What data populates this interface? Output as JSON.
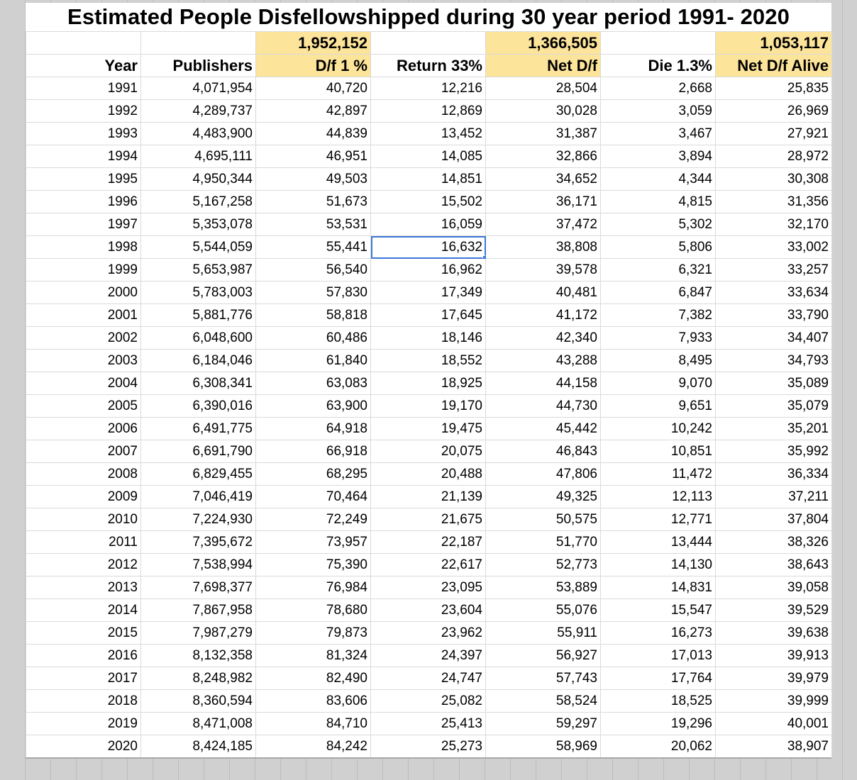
{
  "title": "Estimated People Disfellowshipped during 30 year period 1991- 2020",
  "colors": {
    "highlight": "#fde49b",
    "selection": "#3c78d8",
    "gridline": "#dadada"
  },
  "totals": {
    "df": "1,952,152",
    "net_df": "1,366,505",
    "net_alive": "1,053,117"
  },
  "headers": {
    "year": "Year",
    "publishers": "Publishers",
    "df": "D/f 1 %",
    "return": "Return 33%",
    "net": "Net D/f",
    "die": "Die 1.3%",
    "alive": "Net D/f Alive"
  },
  "selected_cell": {
    "row_year": "1998",
    "column": "Return 33%",
    "value": "16,632"
  },
  "rows": [
    [
      "1991",
      "4,071,954",
      "40,720",
      "12,216",
      "28,504",
      "2,668",
      "25,835"
    ],
    [
      "1992",
      "4,289,737",
      "42,897",
      "12,869",
      "30,028",
      "3,059",
      "26,969"
    ],
    [
      "1993",
      "4,483,900",
      "44,839",
      "13,452",
      "31,387",
      "3,467",
      "27,921"
    ],
    [
      "1994",
      "4,695,111",
      "46,951",
      "14,085",
      "32,866",
      "3,894",
      "28,972"
    ],
    [
      "1995",
      "4,950,344",
      "49,503",
      "14,851",
      "34,652",
      "4,344",
      "30,308"
    ],
    [
      "1996",
      "5,167,258",
      "51,673",
      "15,502",
      "36,171",
      "4,815",
      "31,356"
    ],
    [
      "1997",
      "5,353,078",
      "53,531",
      "16,059",
      "37,472",
      "5,302",
      "32,170"
    ],
    [
      "1998",
      "5,544,059",
      "55,441",
      "16,632",
      "38,808",
      "5,806",
      "33,002"
    ],
    [
      "1999",
      "5,653,987",
      "56,540",
      "16,962",
      "39,578",
      "6,321",
      "33,257"
    ],
    [
      "2000",
      "5,783,003",
      "57,830",
      "17,349",
      "40,481",
      "6,847",
      "33,634"
    ],
    [
      "2001",
      "5,881,776",
      "58,818",
      "17,645",
      "41,172",
      "7,382",
      "33,790"
    ],
    [
      "2002",
      "6,048,600",
      "60,486",
      "18,146",
      "42,340",
      "7,933",
      "34,407"
    ],
    [
      "2003",
      "6,184,046",
      "61,840",
      "18,552",
      "43,288",
      "8,495",
      "34,793"
    ],
    [
      "2004",
      "6,308,341",
      "63,083",
      "18,925",
      "44,158",
      "9,070",
      "35,089"
    ],
    [
      "2005",
      "6,390,016",
      "63,900",
      "19,170",
      "44,730",
      "9,651",
      "35,079"
    ],
    [
      "2006",
      "6,491,775",
      "64,918",
      "19,475",
      "45,442",
      "10,242",
      "35,201"
    ],
    [
      "2007",
      "6,691,790",
      "66,918",
      "20,075",
      "46,843",
      "10,851",
      "35,992"
    ],
    [
      "2008",
      "6,829,455",
      "68,295",
      "20,488",
      "47,806",
      "11,472",
      "36,334"
    ],
    [
      "2009",
      "7,046,419",
      "70,464",
      "21,139",
      "49,325",
      "12,113",
      "37,211"
    ],
    [
      "2010",
      "7,224,930",
      "72,249",
      "21,675",
      "50,575",
      "12,771",
      "37,804"
    ],
    [
      "2011",
      "7,395,672",
      "73,957",
      "22,187",
      "51,770",
      "13,444",
      "38,326"
    ],
    [
      "2012",
      "7,538,994",
      "75,390",
      "22,617",
      "52,773",
      "14,130",
      "38,643"
    ],
    [
      "2013",
      "7,698,377",
      "76,984",
      "23,095",
      "53,889",
      "14,831",
      "39,058"
    ],
    [
      "2014",
      "7,867,958",
      "78,680",
      "23,604",
      "55,076",
      "15,547",
      "39,529"
    ],
    [
      "2015",
      "7,987,279",
      "79,873",
      "23,962",
      "55,911",
      "16,273",
      "39,638"
    ],
    [
      "2016",
      "8,132,358",
      "81,324",
      "24,397",
      "56,927",
      "17,013",
      "39,913"
    ],
    [
      "2017",
      "8,248,982",
      "82,490",
      "24,747",
      "57,743",
      "17,764",
      "39,979"
    ],
    [
      "2018",
      "8,360,594",
      "83,606",
      "25,082",
      "58,524",
      "18,525",
      "39,999"
    ],
    [
      "2019",
      "8,471,008",
      "84,710",
      "25,413",
      "59,297",
      "19,296",
      "40,001"
    ],
    [
      "2020",
      "8,424,185",
      "84,242",
      "25,273",
      "58,969",
      "20,062",
      "38,907"
    ]
  ]
}
